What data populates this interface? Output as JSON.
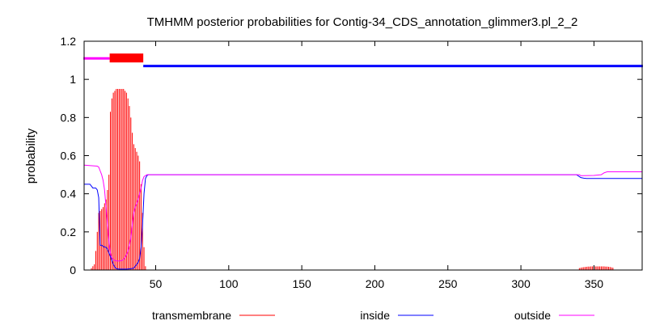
{
  "chart_data": {
    "type": "line",
    "title": "TMHMM posterior probabilities for Contig-34_CDS_annotation_glimmer3.pl_2_2",
    "ylabel": "probability",
    "xlabel": "",
    "xlim": [
      1,
      383
    ],
    "ylim": [
      0,
      1.2
    ],
    "x_ticks": [
      50,
      100,
      150,
      200,
      250,
      300,
      350
    ],
    "y_ticks": [
      0,
      0.2,
      0.4,
      0.6,
      0.8,
      1,
      1.2
    ],
    "x_tick_labels": [
      "50",
      "100",
      "150",
      "200",
      "250",
      "300",
      "350"
    ],
    "y_tick_labels": [
      "0",
      "0.2",
      "0.4",
      "0.6",
      "0.8",
      "1",
      "1.2"
    ],
    "grid": false,
    "legend_position": "bottom",
    "colors": {
      "transmembrane": "#ff0000",
      "inside": "#0000ff",
      "outside": "#ff00ff"
    },
    "topology": [
      {
        "state": "outside",
        "start": 1,
        "end": 18,
        "y": 1.11
      },
      {
        "state": "transmembrane",
        "start": 19,
        "end": 41,
        "y": 1.11
      },
      {
        "state": "inside",
        "start": 42,
        "end": 383,
        "y": 1.07
      }
    ],
    "series": [
      {
        "name": "transmembrane",
        "style": "impulses",
        "points": [
          [
            6,
            0.01
          ],
          [
            7,
            0.02
          ],
          [
            8,
            0.03
          ],
          [
            9,
            0.1
          ],
          [
            10,
            0.2
          ],
          [
            11,
            0.3
          ],
          [
            12,
            0.31
          ],
          [
            13,
            0.32
          ],
          [
            14,
            0.33
          ],
          [
            15,
            0.35
          ],
          [
            16,
            0.37
          ],
          [
            17,
            0.42
          ],
          [
            18,
            0.5
          ],
          [
            19,
            0.83
          ],
          [
            20,
            0.9
          ],
          [
            21,
            0.93
          ],
          [
            22,
            0.94
          ],
          [
            23,
            0.95
          ],
          [
            24,
            0.95
          ],
          [
            25,
            0.95
          ],
          [
            26,
            0.95
          ],
          [
            27,
            0.95
          ],
          [
            28,
            0.95
          ],
          [
            29,
            0.94
          ],
          [
            30,
            0.93
          ],
          [
            31,
            0.9
          ],
          [
            32,
            0.86
          ],
          [
            33,
            0.8
          ],
          [
            34,
            0.72
          ],
          [
            35,
            0.66
          ],
          [
            36,
            0.64
          ],
          [
            37,
            0.62
          ],
          [
            38,
            0.6
          ],
          [
            39,
            0.57
          ],
          [
            40,
            0.45
          ],
          [
            41,
            0.3
          ],
          [
            42,
            0.12
          ],
          [
            43,
            0.02
          ],
          [
            340,
            0.01
          ],
          [
            341,
            0.012
          ],
          [
            342,
            0.014
          ],
          [
            343,
            0.015
          ],
          [
            344,
            0.016
          ],
          [
            345,
            0.017
          ],
          [
            346,
            0.018
          ],
          [
            347,
            0.018
          ],
          [
            348,
            0.019
          ],
          [
            349,
            0.019
          ],
          [
            350,
            0.019
          ],
          [
            351,
            0.019
          ],
          [
            352,
            0.019
          ],
          [
            353,
            0.019
          ],
          [
            354,
            0.019
          ],
          [
            355,
            0.019
          ],
          [
            356,
            0.019
          ],
          [
            357,
            0.019
          ],
          [
            358,
            0.018
          ],
          [
            359,
            0.018
          ],
          [
            360,
            0.017
          ],
          [
            361,
            0.016
          ],
          [
            362,
            0.014
          ],
          [
            363,
            0.012
          ]
        ]
      },
      {
        "name": "inside",
        "style": "line",
        "points": [
          [
            1,
            0.45
          ],
          [
            5,
            0.45
          ],
          [
            6,
            0.44
          ],
          [
            7,
            0.43
          ],
          [
            8,
            0.43
          ],
          [
            9,
            0.43
          ],
          [
            10,
            0.42
          ],
          [
            11,
            0.38
          ],
          [
            12,
            0.13
          ],
          [
            13,
            0.13
          ],
          [
            14,
            0.125
          ],
          [
            15,
            0.12
          ],
          [
            16,
            0.12
          ],
          [
            17,
            0.11
          ],
          [
            18,
            0.09
          ],
          [
            19,
            0.07
          ],
          [
            20,
            0.05
          ],
          [
            21,
            0.03
          ],
          [
            22,
            0.015
          ],
          [
            23,
            0.008
          ],
          [
            24,
            0.006
          ],
          [
            25,
            0.005
          ],
          [
            30,
            0.005
          ],
          [
            33,
            0.007
          ],
          [
            35,
            0.01
          ],
          [
            36,
            0.02
          ],
          [
            37,
            0.03
          ],
          [
            38,
            0.04
          ],
          [
            39,
            0.06
          ],
          [
            40,
            0.12
          ],
          [
            41,
            0.24
          ],
          [
            42,
            0.4
          ],
          [
            43,
            0.48
          ],
          [
            44,
            0.495
          ],
          [
            45,
            0.5
          ],
          [
            338,
            0.5
          ],
          [
            339,
            0.495
          ],
          [
            340,
            0.49
          ],
          [
            341,
            0.485
          ],
          [
            343,
            0.482
          ],
          [
            345,
            0.48
          ],
          [
            383,
            0.48
          ]
        ]
      },
      {
        "name": "outside",
        "style": "line",
        "points": [
          [
            1,
            0.55
          ],
          [
            10,
            0.545
          ],
          [
            11,
            0.54
          ],
          [
            12,
            0.52
          ],
          [
            13,
            0.5
          ],
          [
            14,
            0.47
          ],
          [
            15,
            0.42
          ],
          [
            16,
            0.33
          ],
          [
            17,
            0.24
          ],
          [
            18,
            0.15
          ],
          [
            19,
            0.09
          ],
          [
            20,
            0.065
          ],
          [
            21,
            0.055
          ],
          [
            22,
            0.05
          ],
          [
            23,
            0.048
          ],
          [
            24,
            0.047
          ],
          [
            26,
            0.048
          ],
          [
            27,
            0.05
          ],
          [
            28,
            0.055
          ],
          [
            29,
            0.065
          ],
          [
            30,
            0.08
          ],
          [
            31,
            0.1
          ],
          [
            32,
            0.13
          ],
          [
            33,
            0.17
          ],
          [
            34,
            0.24
          ],
          [
            35,
            0.3
          ],
          [
            36,
            0.33
          ],
          [
            37,
            0.35
          ],
          [
            38,
            0.37
          ],
          [
            39,
            0.4
          ],
          [
            40,
            0.43
          ],
          [
            41,
            0.47
          ],
          [
            42,
            0.49
          ],
          [
            43,
            0.495
          ],
          [
            44,
            0.5
          ],
          [
            340,
            0.5
          ],
          [
            341,
            0.495
          ],
          [
            343,
            0.495
          ],
          [
            350,
            0.496
          ],
          [
            355,
            0.5
          ],
          [
            357,
            0.51
          ],
          [
            359,
            0.515
          ],
          [
            383,
            0.515
          ]
        ]
      }
    ]
  }
}
